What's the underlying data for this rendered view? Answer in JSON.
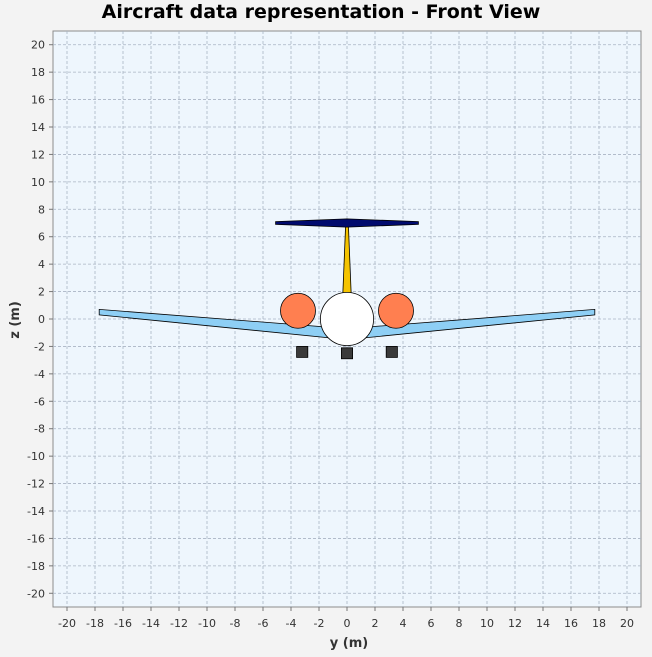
{
  "chart_data": {
    "type": "scatter",
    "title": "Aircraft data representation - Front View",
    "xlabel": "y (m)",
    "ylabel": "z (m)",
    "xlim": [
      -21,
      21
    ],
    "ylim": [
      -21,
      21
    ],
    "x_ticks": [
      -20,
      -18,
      -16,
      -14,
      -12,
      -10,
      -8,
      -6,
      -4,
      -2,
      0,
      2,
      4,
      6,
      8,
      10,
      12,
      14,
      16,
      18,
      20
    ],
    "y_ticks": [
      -20,
      -18,
      -16,
      -14,
      -12,
      -10,
      -8,
      -6,
      -4,
      -2,
      0,
      2,
      4,
      6,
      8,
      10,
      12,
      14,
      16,
      18,
      20
    ],
    "grid": true,
    "legend": "none",
    "colors": {
      "background": "#eef6fd",
      "wing": "#8ecff5",
      "fuselage": "#ffffff",
      "nacelle": "#ff7f50",
      "vertical_tail": "#f5c400",
      "horizontal_tail": "#000a6e",
      "landing_gear": "#3a3a3a"
    },
    "components": {
      "wing_right": [
        [
          0,
          -1.5
        ],
        [
          17.7,
          0.3
        ],
        [
          17.7,
          0.7
        ],
        [
          0,
          -0.7
        ]
      ],
      "wing_left": [
        [
          0,
          -1.5
        ],
        [
          -17.7,
          0.3
        ],
        [
          -17.7,
          0.7
        ],
        [
          0,
          -0.7
        ]
      ],
      "vertical_tail": [
        [
          -0.3,
          1.8
        ],
        [
          0.3,
          1.8
        ],
        [
          0.1,
          6.8
        ],
        [
          -0.1,
          6.8
        ]
      ],
      "horizontal_tail": [
        [
          -5.1,
          7.1
        ],
        [
          0,
          7.3
        ],
        [
          5.1,
          7.1
        ],
        [
          5.1,
          6.9
        ],
        [
          0,
          6.7
        ],
        [
          -5.1,
          6.9
        ]
      ],
      "fuselage": {
        "cx": 0,
        "cy": 0,
        "r": 1.9
      },
      "nacelle_left": {
        "cx": -3.5,
        "cy": 0.6,
        "r": 1.25
      },
      "nacelle_right": {
        "cx": 3.5,
        "cy": 0.6,
        "r": 1.25
      },
      "landing_gear": [
        {
          "x": -3.6,
          "y": -2.8,
          "w": 0.8,
          "h": 0.8
        },
        {
          "x": -0.4,
          "y": -2.9,
          "w": 0.8,
          "h": 0.8
        },
        {
          "x": 2.8,
          "y": -2.8,
          "w": 0.8,
          "h": 0.8
        }
      ]
    }
  }
}
